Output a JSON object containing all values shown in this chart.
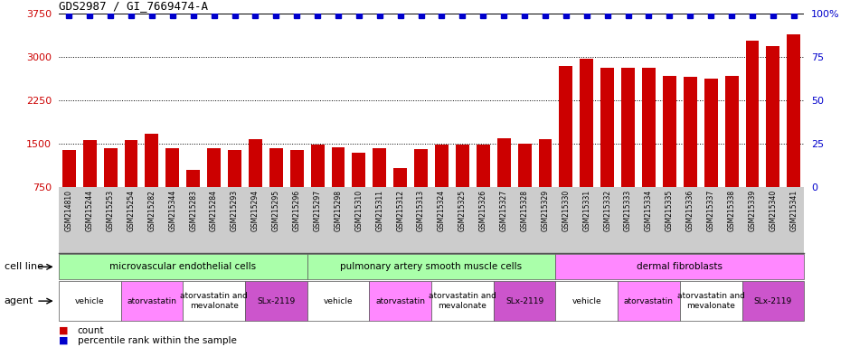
{
  "title": "GDS2987 / GI_7669474-A",
  "samples": [
    "GSM214810",
    "GSM215244",
    "GSM215253",
    "GSM215254",
    "GSM215282",
    "GSM215344",
    "GSM215283",
    "GSM215284",
    "GSM215293",
    "GSM215294",
    "GSM215295",
    "GSM215296",
    "GSM215297",
    "GSM215298",
    "GSM215310",
    "GSM215311",
    "GSM215312",
    "GSM215313",
    "GSM215324",
    "GSM215325",
    "GSM215326",
    "GSM215327",
    "GSM215328",
    "GSM215329",
    "GSM215330",
    "GSM215331",
    "GSM215332",
    "GSM215333",
    "GSM215334",
    "GSM215335",
    "GSM215336",
    "GSM215337",
    "GSM215338",
    "GSM215339",
    "GSM215340",
    "GSM215341"
  ],
  "counts": [
    1400,
    1570,
    1430,
    1570,
    1670,
    1430,
    1060,
    1430,
    1390,
    1590,
    1420,
    1390,
    1490,
    1450,
    1350,
    1420,
    1090,
    1410,
    1490,
    1490,
    1490,
    1600,
    1510,
    1580,
    2850,
    2970,
    2820,
    2820,
    2820,
    2680,
    2660,
    2630,
    2680,
    3280,
    3200,
    3390
  ],
  "percentiles": [
    99,
    99,
    99,
    99,
    99,
    99,
    99,
    99,
    99,
    99,
    99,
    99,
    99,
    99,
    99,
    99,
    99,
    99,
    99,
    99,
    99,
    99,
    99,
    99,
    99,
    99,
    99,
    99,
    99,
    99,
    99,
    99,
    99,
    99,
    99,
    99
  ],
  "ylim_left": [
    750,
    3750
  ],
  "ylim_right": [
    0,
    100
  ],
  "yticks_left": [
    750,
    1500,
    2250,
    3000,
    3750
  ],
  "yticks_right": [
    0,
    25,
    50,
    75,
    100
  ],
  "bar_color": "#cc0000",
  "dot_color": "#0000cc",
  "bg_color": "#ffffff",
  "xtick_bg_color": "#cccccc",
  "cell_line_groups": [
    {
      "label": "microvascular endothelial cells",
      "start": 0,
      "end": 12,
      "color": "#aaffaa"
    },
    {
      "label": "pulmonary artery smooth muscle cells",
      "start": 12,
      "end": 24,
      "color": "#aaffaa"
    },
    {
      "label": "dermal fibroblasts",
      "start": 24,
      "end": 36,
      "color": "#ff88ff"
    }
  ],
  "agent_groups": [
    {
      "label": "vehicle",
      "start": 0,
      "end": 3,
      "color": "#ffffff"
    },
    {
      "label": "atorvastatin",
      "start": 3,
      "end": 6,
      "color": "#ff88ff"
    },
    {
      "label": "atorvastatin and\nmevalonate",
      "start": 6,
      "end": 9,
      "color": "#ffffff"
    },
    {
      "label": "SLx-2119",
      "start": 9,
      "end": 12,
      "color": "#cc55cc"
    },
    {
      "label": "vehicle",
      "start": 12,
      "end": 15,
      "color": "#ffffff"
    },
    {
      "label": "atorvastatin",
      "start": 15,
      "end": 18,
      "color": "#ff88ff"
    },
    {
      "label": "atorvastatin and\nmevalonate",
      "start": 18,
      "end": 21,
      "color": "#ffffff"
    },
    {
      "label": "SLx-2119",
      "start": 21,
      "end": 24,
      "color": "#cc55cc"
    },
    {
      "label": "vehicle",
      "start": 24,
      "end": 27,
      "color": "#ffffff"
    },
    {
      "label": "atorvastatin",
      "start": 27,
      "end": 30,
      "color": "#ff88ff"
    },
    {
      "label": "atorvastatin and\nmevalonate",
      "start": 30,
      "end": 33,
      "color": "#ffffff"
    },
    {
      "label": "SLx-2119",
      "start": 33,
      "end": 36,
      "color": "#cc55cc"
    }
  ]
}
